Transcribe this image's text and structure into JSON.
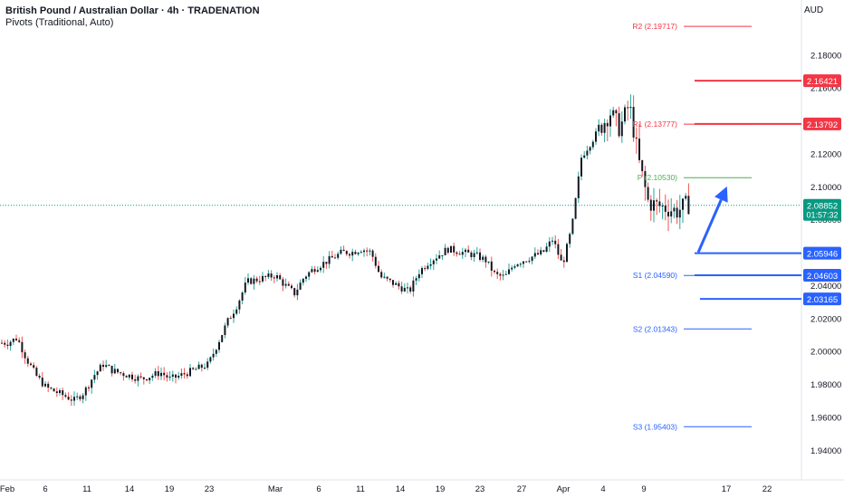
{
  "header": {
    "title": "British Pound / Australian Dollar · 4h · TRADENATION",
    "indicator": "Pivots (Traditional, Auto)"
  },
  "currency_label": "AUD",
  "colors": {
    "up": "#26a69a",
    "down": "#ef5350",
    "candle": "#131722",
    "resistance": "#f23645",
    "support": "#2962ff",
    "pivot": "#4caf50",
    "arrow": "#2962ff",
    "last_price": "#089981"
  },
  "chart_data": {
    "type": "candlestick",
    "symbol": "GBPAUD",
    "timeframe": "4h",
    "ylim": [
      1.93,
      2.2
    ],
    "y_ticks": [
      "2.18000",
      "2.16000",
      "2.14000",
      "2.12000",
      "2.10000",
      "2.08000",
      "2.06000",
      "2.04000",
      "2.02000",
      "2.00000",
      "1.98000",
      "1.96000",
      "1.94000"
    ],
    "x_ticks": [
      "Feb",
      "6",
      "11",
      "14",
      "19",
      "23",
      "Mar",
      "6",
      "11",
      "14",
      "19",
      "23",
      "27",
      "Apr",
      "4",
      "9",
      "17",
      "22"
    ],
    "last_price": "2.08852",
    "countdown": "01:57:32",
    "price_path": [
      [
        "2025-02-03",
        2.005
      ],
      [
        "2025-02-04",
        2.008
      ],
      [
        "2025-02-05",
        1.995
      ],
      [
        "2025-02-06",
        1.985
      ],
      [
        "2025-02-07",
        1.978
      ],
      [
        "2025-02-10",
        1.97
      ],
      [
        "2025-02-11",
        1.975
      ],
      [
        "2025-02-12",
        1.985
      ],
      [
        "2025-02-13",
        1.992
      ],
      [
        "2025-02-14",
        1.988
      ],
      [
        "2025-02-17",
        1.983
      ],
      [
        "2025-02-18",
        1.985
      ],
      [
        "2025-02-19",
        1.987
      ],
      [
        "2025-02-20",
        1.983
      ],
      [
        "2025-02-21",
        1.985
      ],
      [
        "2025-02-24",
        1.992
      ],
      [
        "2025-02-25",
        2.005
      ],
      [
        "2025-02-26",
        2.018
      ],
      [
        "2025-02-27",
        2.028
      ],
      [
        "2025-02-28",
        2.042
      ],
      [
        "2025-03-03",
        2.046
      ],
      [
        "2025-03-04",
        2.04
      ],
      [
        "2025-03-05",
        2.035
      ],
      [
        "2025-03-06",
        2.045
      ],
      [
        "2025-03-07",
        2.05
      ],
      [
        "2025-03-10",
        2.06
      ],
      [
        "2025-03-11",
        2.06
      ],
      [
        "2025-03-12",
        2.062
      ],
      [
        "2025-03-13",
        2.06
      ],
      [
        "2025-03-14",
        2.045
      ],
      [
        "2025-03-17",
        2.036
      ],
      [
        "2025-03-18",
        2.048
      ],
      [
        "2025-03-19",
        2.054
      ],
      [
        "2025-03-20",
        2.058
      ],
      [
        "2025-03-21",
        2.062
      ],
      [
        "2025-03-24",
        2.058
      ],
      [
        "2025-03-25",
        2.055
      ],
      [
        "2025-03-26",
        2.046
      ],
      [
        "2025-03-27",
        2.045
      ],
      [
        "2025-03-28",
        2.053
      ],
      [
        "2025-03-31",
        2.06
      ],
      [
        "2025-04-01",
        2.068
      ],
      [
        "2025-04-02",
        2.052
      ],
      [
        "2025-04-03",
        2.075
      ],
      [
        "2025-04-04",
        2.118
      ],
      [
        "2025-04-07",
        2.145
      ],
      [
        "2025-04-08",
        2.135
      ],
      [
        "2025-04-09",
        2.15
      ],
      [
        "2025-04-10",
        2.115
      ],
      [
        "2025-04-11",
        2.09
      ],
      [
        "2025-04-14",
        2.085
      ],
      [
        "2025-04-15",
        2.089
      ]
    ],
    "levels": [
      {
        "label": "R2 (2.19717)",
        "value": 2.19717,
        "kind": "resistance"
      },
      {
        "label": "R1 (2.13777)",
        "value": 2.13777,
        "kind": "resistance"
      },
      {
        "label": "P (2.10530)",
        "value": 2.1053,
        "kind": "pivot"
      },
      {
        "label": "S1 (2.04590)",
        "value": 2.0459,
        "kind": "support"
      },
      {
        "label": "S2 (2.01343)",
        "value": 2.01343,
        "kind": "support"
      },
      {
        "label": "S3 (1.95403)",
        "value": 1.95403,
        "kind": "support"
      }
    ],
    "drawn_lines": [
      {
        "value": 2.16421,
        "label": "2.16421",
        "kind": "resistance"
      },
      {
        "value": 2.13792,
        "label": "2.13792",
        "kind": "resistance"
      },
      {
        "value": 2.05946,
        "label": "2.05946",
        "kind": "support"
      },
      {
        "value": 2.04603,
        "label": "2.04603",
        "kind": "support"
      },
      {
        "value": 2.03165,
        "label": "2.03165",
        "kind": "support"
      }
    ],
    "projection_arrow": {
      "from": [
        "2025-04-16",
        2.06
      ],
      "to": [
        "2025-04-19",
        2.1
      ]
    }
  }
}
